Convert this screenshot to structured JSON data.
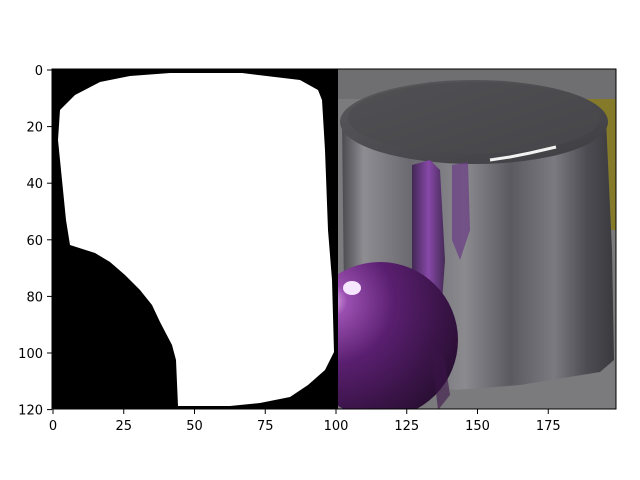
{
  "figure": {
    "x_ticks": [
      "0",
      "25",
      "50",
      "75",
      "100",
      "125",
      "150",
      "175"
    ],
    "y_ticks": [
      "0",
      "20",
      "40",
      "60",
      "80",
      "100",
      "120"
    ],
    "panels": [
      {
        "id": "mask",
        "content": "binary segmentation mask"
      },
      {
        "id": "photo",
        "content": "metallic cylinder with purple sphere"
      }
    ]
  }
}
